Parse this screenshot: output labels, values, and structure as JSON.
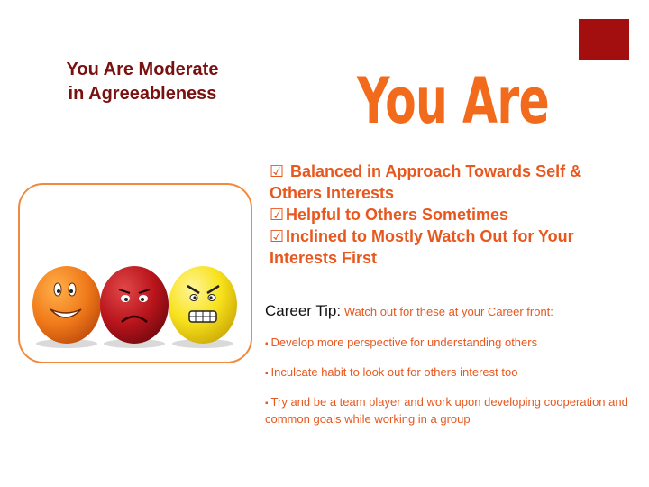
{
  "title": {
    "line1": "You Are Moderate",
    "line2": "in Agreeableness"
  },
  "headline": "You Are",
  "traits": [
    "Balanced in Approach Towards Self & Others Interests",
    "Helpful to Others Sometimes",
    "Inclined to Mostly Watch Out for Your Interests First"
  ],
  "checkbox_glyph": "☑",
  "career_tip": {
    "label": "Career Tip:",
    "text": "Watch out for these at your Career front:",
    "bullet_glyph": "▪",
    "bullets": [
      "Develop more perspective for understanding others",
      "Inculcate habit to look out for others interest too",
      "Try and be a team player and work upon developing cooperation and common goals while working in a group"
    ]
  },
  "colors": {
    "accent": "#e8571e",
    "headline": "#f26b1d",
    "title": "#7a1111",
    "corner_block": "#a30f0f"
  },
  "image": {
    "content": "three-egg-faces-icon"
  }
}
